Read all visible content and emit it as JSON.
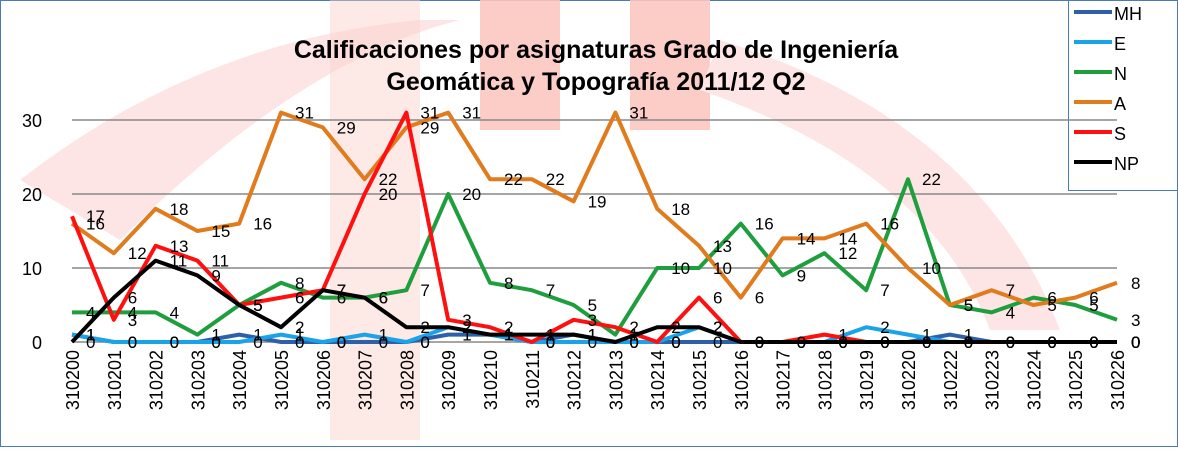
{
  "chart_data": {
    "type": "line",
    "title": [
      "Calificaciones por asignaturas Grado de Ingeniería",
      "Geomática y Topografía 2011/12 Q2"
    ],
    "categories": [
      "310200",
      "310201",
      "310202",
      "310203",
      "310204",
      "310205",
      "310206",
      "310207",
      "310208",
      "310209",
      "310210",
      "310211",
      "310212",
      "310213",
      "310214",
      "310215",
      "310216",
      "310217",
      "310218",
      "310219",
      "310220",
      "310222",
      "310223",
      "310224",
      "310225",
      "310226"
    ],
    "ylim": [
      0,
      35
    ],
    "yticks": [
      0,
      10,
      20,
      30
    ],
    "grid": true,
    "series": [
      {
        "name": "MH",
        "color": "#2e5fa8",
        "values": [
          1,
          0,
          0,
          0,
          1,
          0,
          0,
          0,
          0,
          1,
          1,
          0,
          1,
          0,
          0,
          0,
          0,
          0,
          0,
          0,
          0,
          1,
          0,
          0,
          0,
          0
        ]
      },
      {
        "name": "E",
        "color": "#1aa3e8",
        "values": [
          1,
          0,
          0,
          0,
          0,
          1,
          0,
          1,
          0,
          2,
          1,
          0,
          0,
          0,
          0,
          2,
          0,
          0,
          0,
          2,
          1,
          0,
          0,
          0,
          0,
          0
        ]
      },
      {
        "name": "N",
        "color": "#1f9e3e",
        "values": [
          4,
          4,
          4,
          1,
          5,
          8,
          6,
          6,
          7,
          20,
          8,
          7,
          5,
          1,
          10,
          10,
          16,
          9,
          12,
          7,
          22,
          5,
          4,
          6,
          5,
          3
        ]
      },
      {
        "name": "A",
        "color": "#e07b1e",
        "values": [
          16,
          12,
          18,
          15,
          16,
          31,
          29,
          22,
          29,
          31,
          22,
          22,
          19,
          31,
          18,
          13,
          6,
          14,
          14,
          16,
          10,
          5,
          7,
          5,
          6,
          8
        ]
      },
      {
        "name": "S",
        "color": "#ff1010",
        "values": [
          17,
          3,
          13,
          11,
          5,
          6,
          7,
          20,
          31,
          3,
          2,
          0,
          3,
          2,
          0,
          6,
          0,
          0,
          1,
          0,
          0,
          0,
          0,
          0,
          0,
          0
        ]
      },
      {
        "name": "NP",
        "color": "#000000",
        "values": [
          0,
          6,
          11,
          9,
          5,
          2,
          7,
          6,
          2,
          2,
          1,
          1,
          1,
          0,
          2,
          2,
          0,
          0,
          0,
          0,
          0,
          0,
          0,
          0,
          0,
          0
        ]
      }
    ]
  }
}
